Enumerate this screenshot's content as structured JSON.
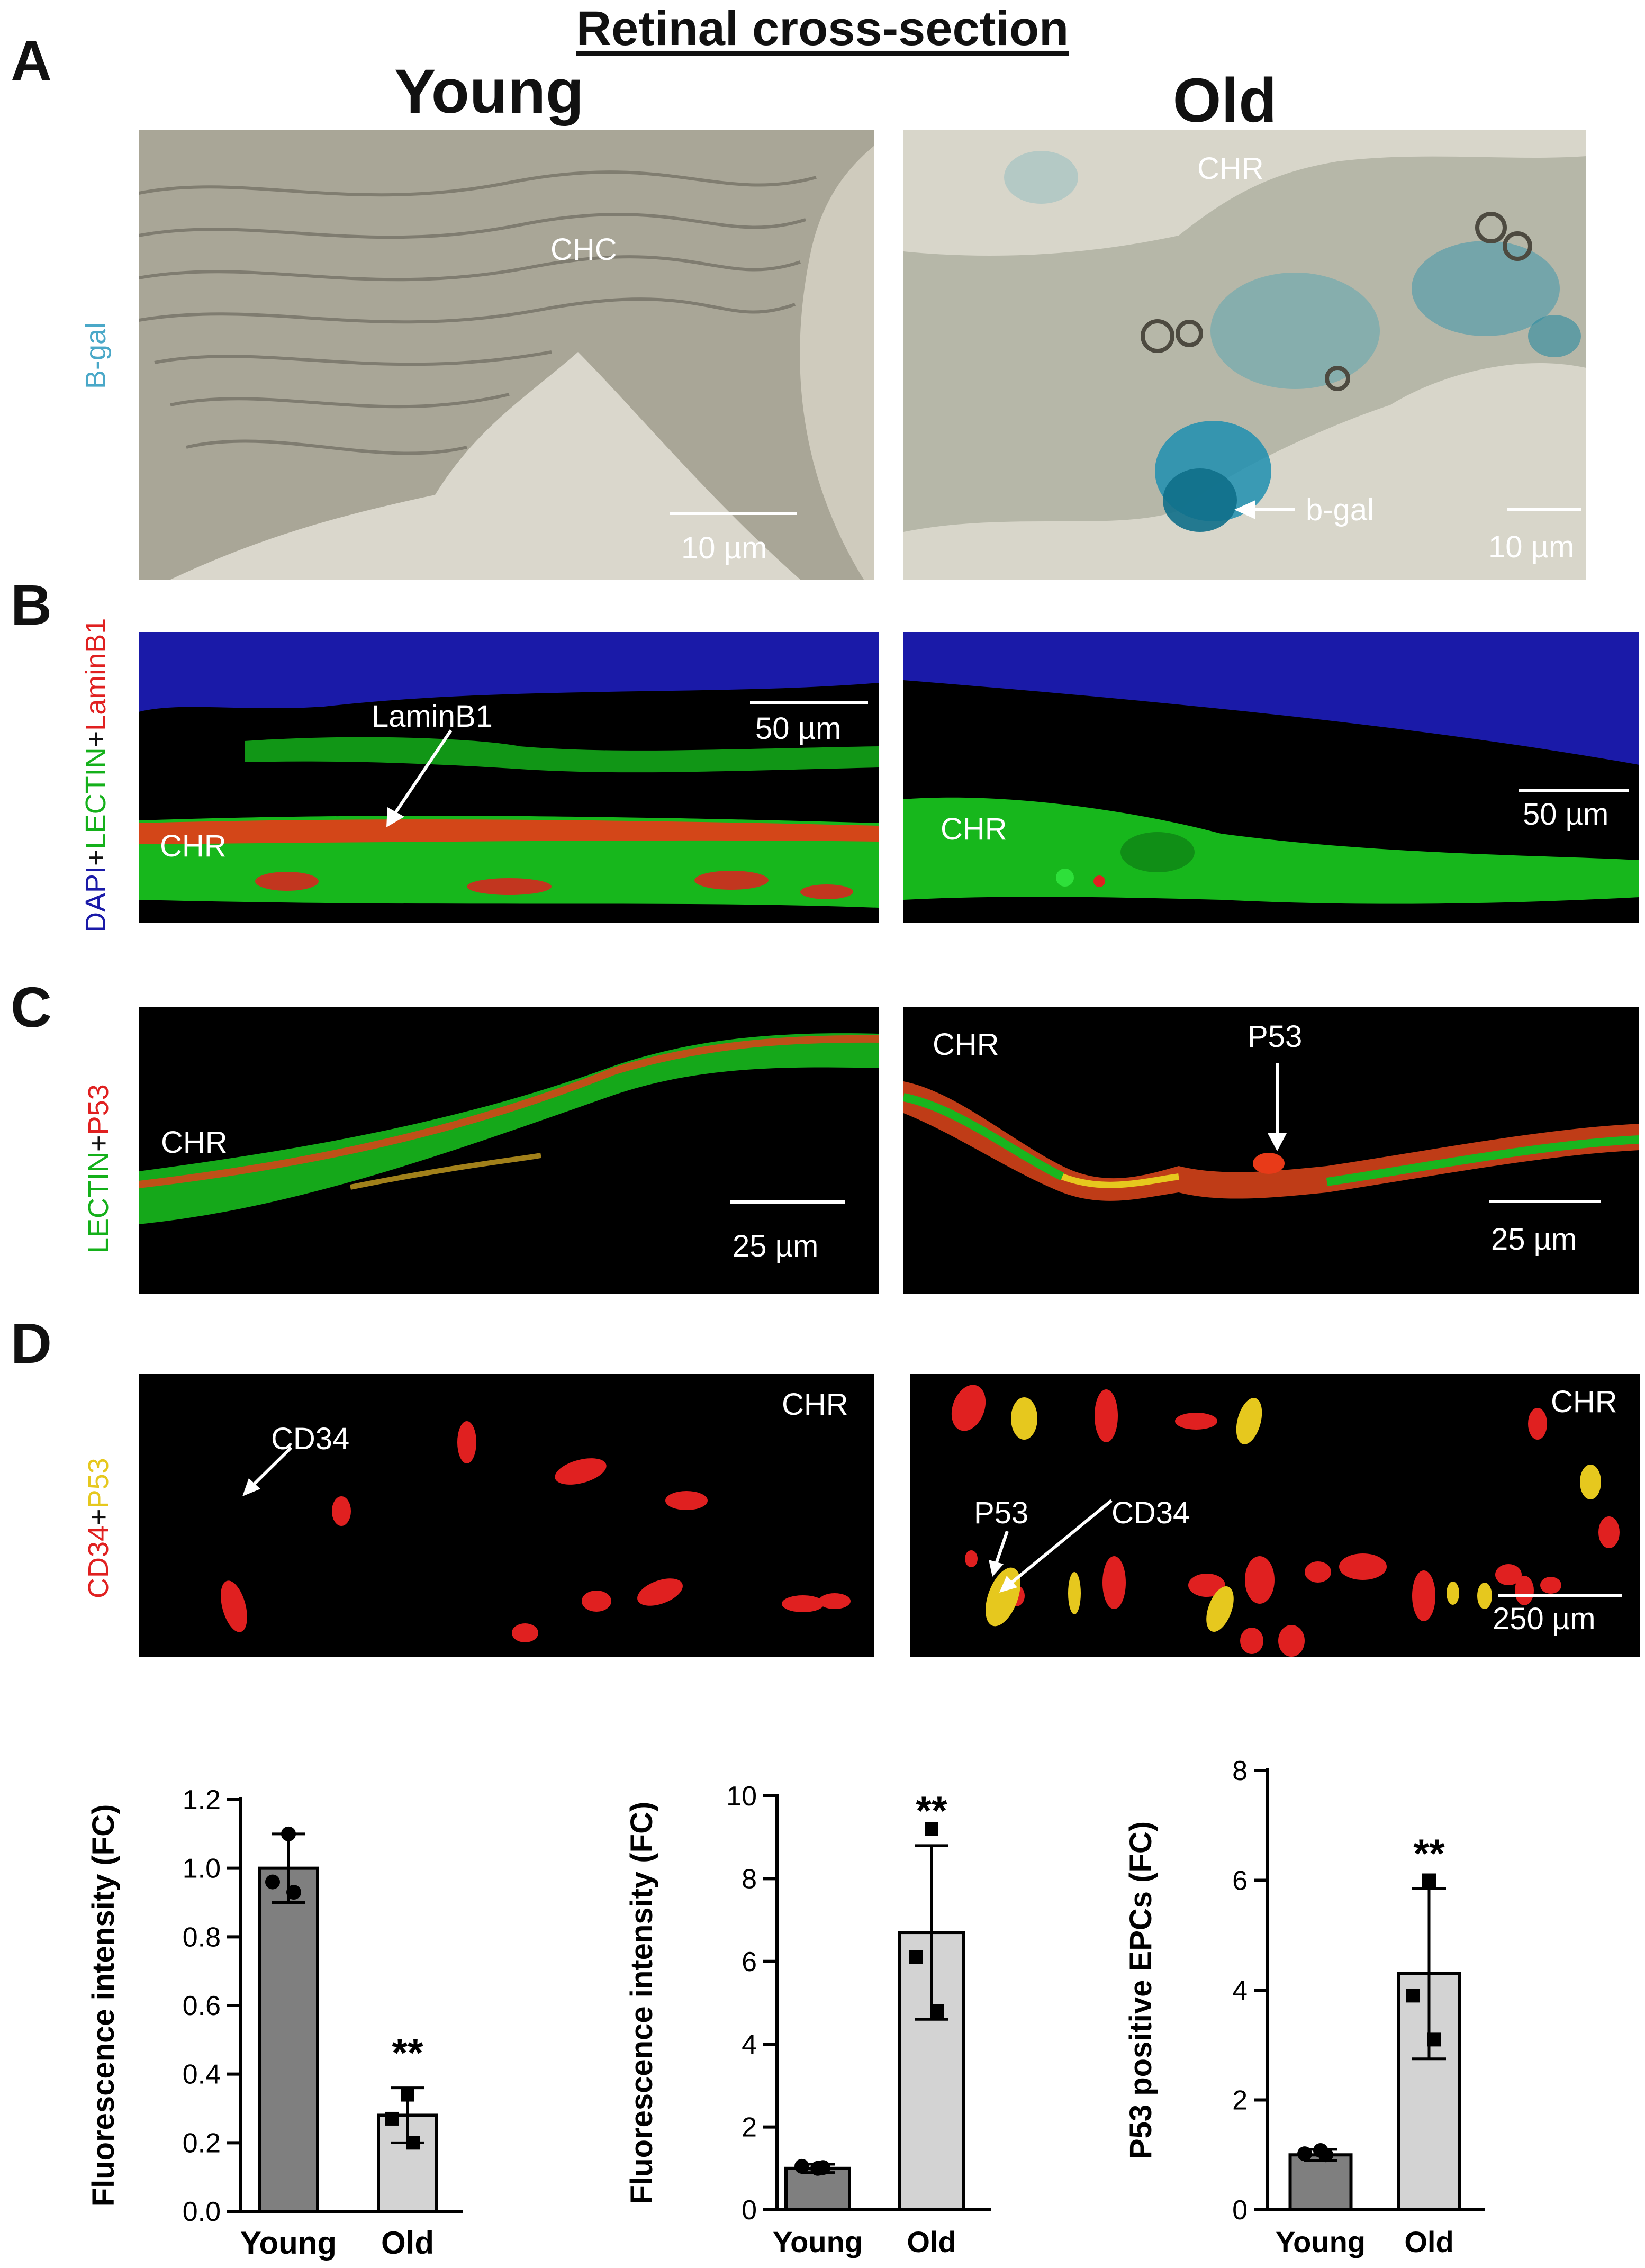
{
  "figure": {
    "title": "Retinal cross-section",
    "columns": [
      "Young",
      "Old"
    ]
  },
  "panels": {
    "A": {
      "letter": "A",
      "side_label": "B-gal",
      "young": {
        "label": "CHC",
        "scale": "10 µm"
      },
      "old": {
        "label": "CHR",
        "arrow_label": "b-gal",
        "scale": "10 µm"
      }
    },
    "B": {
      "letter": "B",
      "side_label": {
        "dapi": "DAPI",
        "plus1": "+",
        "lectin": "LECTIN",
        "plus2": "+",
        "lamin": "LaminB1"
      },
      "young": {
        "label": "CHR",
        "arrow_label": "LaminB1",
        "scale": "50 µm"
      },
      "old": {
        "label": "CHR",
        "scale": "50 µm"
      }
    },
    "C": {
      "letter": "C",
      "side_label": {
        "lectin": "LECTIN",
        "plus": "+",
        "p53": "P53"
      },
      "young": {
        "label": "CHR",
        "scale": "25 µm"
      },
      "old": {
        "label": "CHR",
        "arrow_label": "P53",
        "scale": "25 µm"
      }
    },
    "D": {
      "letter": "D",
      "side_label": {
        "cd34": "CD34",
        "plus": "+",
        "p53": "P53"
      },
      "young": {
        "label": "CHR",
        "arrow_label": "CD34"
      },
      "old": {
        "label": "CHR",
        "arrow_label_1": "P53",
        "arrow_label_2": "CD34",
        "scale": "250 µm"
      }
    }
  },
  "colors": {
    "bgal_blue": "#1f8fb0",
    "dapi_blue": "#1a1aa8",
    "lectin_green": "#14b01a",
    "red": "#e02020",
    "yellow": "#e6c81e",
    "bar_young": "#7f7f7f",
    "bar_old": "#d3d3d3"
  },
  "chart_data": [
    {
      "type": "bar",
      "categories": [
        "Young",
        "Old"
      ],
      "values": [
        1.0,
        0.28
      ],
      "error": [
        0.1,
        0.08
      ],
      "points": [
        [
          1.1,
          0.96,
          0.93
        ],
        [
          0.34,
          0.27,
          0.2
        ]
      ],
      "ylabel": "Fluorescence intensity (FC)",
      "ylim": [
        0,
        1.2
      ],
      "yticks": [
        0.0,
        0.2,
        0.4,
        0.6,
        0.8,
        1.0,
        1.2
      ],
      "annotation": "**"
    },
    {
      "type": "bar",
      "categories": [
        "Young",
        "Old"
      ],
      "values": [
        1.0,
        6.7
      ],
      "error": [
        0.1,
        2.1
      ],
      "points": [
        [
          1.0,
          1.05,
          1.02
        ],
        [
          9.2,
          6.1,
          4.8
        ]
      ],
      "ylabel": "Fluorescence intensity (FC)",
      "ylim": [
        0,
        10
      ],
      "yticks": [
        0,
        2,
        4,
        6,
        8,
        10
      ],
      "annotation": "**"
    },
    {
      "type": "bar",
      "categories": [
        "Young",
        "Old"
      ],
      "values": [
        1.0,
        4.3
      ],
      "error": [
        0.1,
        1.55
      ],
      "points": [
        [
          1.08,
          1.02,
          1.0
        ],
        [
          6.0,
          3.9,
          3.1
        ]
      ],
      "ylabel": "P53 positive EPCs (FC)",
      "ylim": [
        0,
        8
      ],
      "yticks": [
        0,
        2,
        4,
        6,
        8
      ],
      "annotation": "**"
    }
  ]
}
